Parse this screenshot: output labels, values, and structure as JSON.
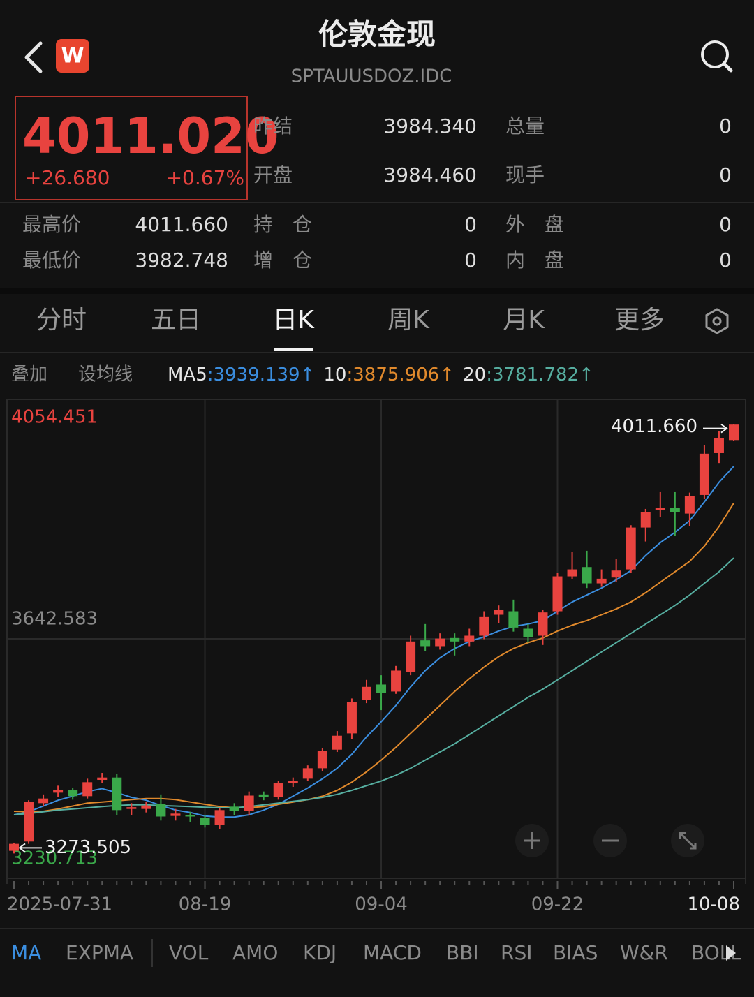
{
  "header": {
    "title": "伦敦金现",
    "subtitle": "SPTAUUSDOZ.IDC",
    "logo": "W"
  },
  "quote": {
    "price": "4011.020",
    "change": "+26.680",
    "change_pct": "+0.67%"
  },
  "stats": {
    "rows": [
      [
        "昨结",
        "3984.340",
        "总量",
        "0"
      ],
      [
        "开盘",
        "3984.460",
        "现手",
        "0"
      ]
    ]
  },
  "stats2": {
    "rows": [
      [
        "最高价",
        "4011.660",
        "持　仓",
        "0",
        "外　盘",
        "0"
      ],
      [
        "最低价",
        "3982.748",
        "增　仓",
        "0",
        "内　盘",
        "0"
      ]
    ]
  },
  "tabs": {
    "items": [
      "分时",
      "五日",
      "日K",
      "周K",
      "月K",
      "更多"
    ],
    "active": 2
  },
  "ma_bar": {
    "overlay": "叠加",
    "set_ma": "设均线"
  },
  "chart_data": {
    "type": "candlestick",
    "categories": [
      "2025-07-31",
      null,
      null,
      null,
      null,
      null,
      null,
      null,
      null,
      null,
      null,
      null,
      null,
      "08-19",
      null,
      null,
      null,
      null,
      null,
      null,
      null,
      null,
      null,
      null,
      null,
      "09-04",
      null,
      null,
      null,
      null,
      null,
      null,
      null,
      null,
      null,
      null,
      null,
      "09-22",
      null,
      null,
      null,
      null,
      null,
      null,
      null,
      null,
      null,
      null,
      null,
      "10-08"
    ],
    "open": [
      3278,
      3294,
      3360,
      3378,
      3382,
      3372,
      3400,
      3404,
      3350,
      3350,
      3358,
      3338,
      3340,
      3335,
      3322,
      3354,
      3347,
      3375,
      3370,
      3394,
      3402,
      3420,
      3452,
      3480,
      3538,
      3564,
      3552,
      3586,
      3640,
      3630,
      3644,
      3638,
      3648,
      3684,
      3690,
      3660,
      3648,
      3690,
      3750,
      3766,
      3738,
      3748,
      3762,
      3834,
      3864,
      3868,
      3858,
      3890,
      3962,
      3984.46
    ],
    "high": [
      3292,
      3365,
      3375,
      3390,
      3386,
      3402,
      3412,
      3410,
      3360,
      3362,
      3375,
      3350,
      3345,
      3340,
      3352,
      3360,
      3380,
      3380,
      3398,
      3404,
      3425,
      3455,
      3484,
      3540,
      3572,
      3580,
      3596,
      3648,
      3668,
      3652,
      3652,
      3660,
      3690,
      3700,
      3710,
      3668,
      3692,
      3756,
      3792,
      3794,
      3762,
      3780,
      3838,
      3866,
      3896,
      3896,
      3894,
      3976,
      4000,
      4011.66
    ],
    "low": [
      3273.505,
      3290,
      3355,
      3370,
      3366,
      3368,
      3395,
      3340,
      3340,
      3344,
      3330,
      3330,
      3328,
      3318,
      3316,
      3340,
      3340,
      3365,
      3366,
      3388,
      3398,
      3415,
      3448,
      3470,
      3532,
      3520,
      3548,
      3580,
      3622,
      3624,
      3614,
      3630,
      3642,
      3670,
      3655,
      3636,
      3632,
      3684,
      3745,
      3730,
      3732,
      3740,
      3756,
      3810,
      3852,
      3820,
      3836,
      3884,
      3945,
      3982.748
    ],
    "close": [
      3290,
      3362,
      3368,
      3383,
      3372,
      3396,
      3404,
      3348,
      3353,
      3356,
      3337,
      3342,
      3337,
      3322,
      3348,
      3346,
      3373,
      3370,
      3394,
      3398,
      3420,
      3450,
      3476,
      3534,
      3560,
      3550,
      3588,
      3638,
      3630,
      3643,
      3638,
      3648,
      3680,
      3692,
      3662,
      3646,
      3688,
      3750,
      3762,
      3738,
      3746,
      3760,
      3834,
      3861,
      3868,
      3860,
      3888,
      3961,
      3988,
      4011.02
    ],
    "up_color": "#e8433f",
    "down_color": "#3aa84a",
    "ylim": [
      3230.713,
      4054.451
    ],
    "yticks": [
      3230.713,
      3642.583,
      4054.451
    ],
    "grid": true,
    "separator": ":",
    "ma_series": [
      {
        "name": "MA5",
        "color": "#3b8ee0",
        "trend": "↑",
        "values": [
          3340,
          3345,
          3355,
          3365,
          3372,
          3380,
          3385,
          3378,
          3370,
          3365,
          3356,
          3348,
          3344,
          3338,
          3336,
          3336,
          3340,
          3348,
          3358,
          3372,
          3386,
          3402,
          3420,
          3444,
          3474,
          3500,
          3528,
          3560,
          3588,
          3610,
          3626,
          3638,
          3646,
          3656,
          3664,
          3668,
          3674,
          3690,
          3706,
          3718,
          3730,
          3744,
          3760,
          3786,
          3808,
          3826,
          3846,
          3878,
          3912,
          3939.139
        ]
      },
      {
        "name": "10",
        "color": "#e0892c",
        "trend": "↑",
        "values": [
          3346,
          3345,
          3346,
          3350,
          3355,
          3360,
          3362,
          3364,
          3366,
          3368,
          3368,
          3366,
          3362,
          3358,
          3354,
          3352,
          3352,
          3354,
          3358,
          3362,
          3366,
          3372,
          3382,
          3396,
          3414,
          3434,
          3456,
          3480,
          3504,
          3528,
          3552,
          3574,
          3594,
          3612,
          3626,
          3636,
          3644,
          3656,
          3666,
          3674,
          3684,
          3694,
          3706,
          3722,
          3740,
          3758,
          3776,
          3802,
          3836,
          3875.906
        ]
      },
      {
        "name": "20",
        "color": "#56aea0",
        "trend": "↑",
        "values": [
          3340,
          3342,
          3345,
          3348,
          3350,
          3352,
          3354,
          3356,
          3357,
          3357,
          3356,
          3355,
          3354,
          3353,
          3352,
          3352,
          3354,
          3357,
          3360,
          3363,
          3366,
          3370,
          3375,
          3382,
          3390,
          3398,
          3408,
          3420,
          3434,
          3448,
          3462,
          3478,
          3494,
          3510,
          3526,
          3542,
          3556,
          3572,
          3588,
          3604,
          3620,
          3636,
          3652,
          3668,
          3684,
          3700,
          3718,
          3738,
          3758,
          3781.782
        ]
      }
    ],
    "annotations": [
      {
        "label": "4011.660",
        "value": 4011.66
      },
      {
        "label": "3273.505",
        "value": 3273.505
      }
    ]
  },
  "indicator_tabs": {
    "items": [
      "MA",
      "EXPMA",
      "VOL",
      "AMO",
      "KDJ",
      "MACD",
      "BBI",
      "RSI",
      "BIAS",
      "W&R",
      "BOLL"
    ],
    "active": 0
  }
}
